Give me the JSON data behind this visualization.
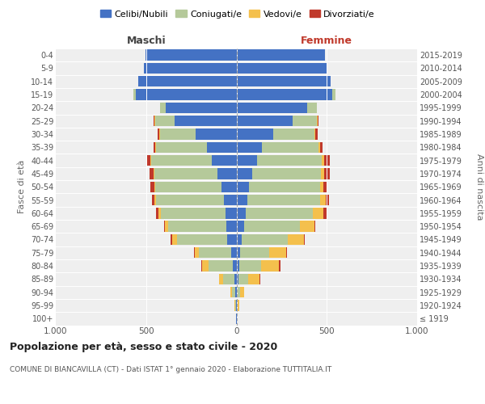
{
  "age_groups": [
    "100+",
    "95-99",
    "90-94",
    "85-89",
    "80-84",
    "75-79",
    "70-74",
    "65-69",
    "60-64",
    "55-59",
    "50-54",
    "45-49",
    "40-44",
    "35-39",
    "30-34",
    "25-29",
    "20-24",
    "15-19",
    "10-14",
    "5-9",
    "0-4"
  ],
  "birth_years": [
    "≤ 1919",
    "1920-1924",
    "1925-1929",
    "1930-1934",
    "1935-1939",
    "1940-1944",
    "1945-1949",
    "1950-1954",
    "1955-1959",
    "1960-1964",
    "1965-1969",
    "1970-1974",
    "1975-1979",
    "1980-1984",
    "1985-1989",
    "1990-1994",
    "1995-1999",
    "2000-2004",
    "2005-2009",
    "2010-2014",
    "2015-2019"
  ],
  "maschi": {
    "celibi": [
      2,
      3,
      6,
      12,
      22,
      28,
      52,
      58,
      62,
      68,
      82,
      105,
      135,
      165,
      225,
      342,
      392,
      558,
      542,
      512,
      502
    ],
    "coniugati": [
      1,
      4,
      18,
      62,
      132,
      182,
      278,
      322,
      358,
      378,
      368,
      348,
      338,
      278,
      198,
      108,
      32,
      12,
      0,
      0,
      0
    ],
    "vedovi": [
      1,
      3,
      9,
      22,
      36,
      21,
      26,
      16,
      11,
      7,
      5,
      5,
      5,
      5,
      5,
      4,
      0,
      0,
      0,
      0,
      0
    ],
    "divorziati": [
      0,
      0,
      1,
      2,
      3,
      5,
      9,
      5,
      16,
      16,
      21,
      21,
      16,
      11,
      7,
      5,
      0,
      0,
      0,
      0,
      0
    ]
  },
  "femmine": {
    "nubili": [
      2,
      3,
      5,
      11,
      15,
      21,
      31,
      41,
      51,
      61,
      71,
      87,
      112,
      142,
      202,
      312,
      392,
      532,
      522,
      502,
      492
    ],
    "coniugate": [
      1,
      5,
      17,
      56,
      121,
      161,
      251,
      311,
      371,
      401,
      391,
      381,
      361,
      311,
      231,
      131,
      51,
      17,
      0,
      0,
      0
    ],
    "vedove": [
      1,
      6,
      21,
      61,
      101,
      91,
      91,
      81,
      61,
      31,
      21,
      16,
      11,
      8,
      5,
      5,
      4,
      0,
      0,
      0,
      0
    ],
    "divorziate": [
      0,
      0,
      1,
      2,
      5,
      5,
      5,
      5,
      16,
      21,
      21,
      31,
      31,
      16,
      11,
      5,
      0,
      0,
      0,
      0,
      0
    ]
  },
  "colors": {
    "celibi_nubili": "#4472c4",
    "coniugati": "#b5c99a",
    "vedovi": "#f4c04d",
    "divorziati": "#c0392b"
  },
  "legend_labels": [
    "Celibi/Nubili",
    "Coniugati/e",
    "Vedovi/e",
    "Divorziati/e"
  ],
  "maschi_label": "Maschi",
  "femmine_label": "Femmine",
  "title": "Popolazione per età, sesso e stato civile - 2020",
  "subtitle": "COMUNE DI BIANCAVILLA (CT) - Dati ISTAT 1° gennaio 2020 - Elaborazione TUTTITALIA.IT",
  "ylabel_left": "Fasce di età",
  "ylabel_right": "Anni di nascita",
  "xlim": 1000,
  "bg_color": "#efefef"
}
